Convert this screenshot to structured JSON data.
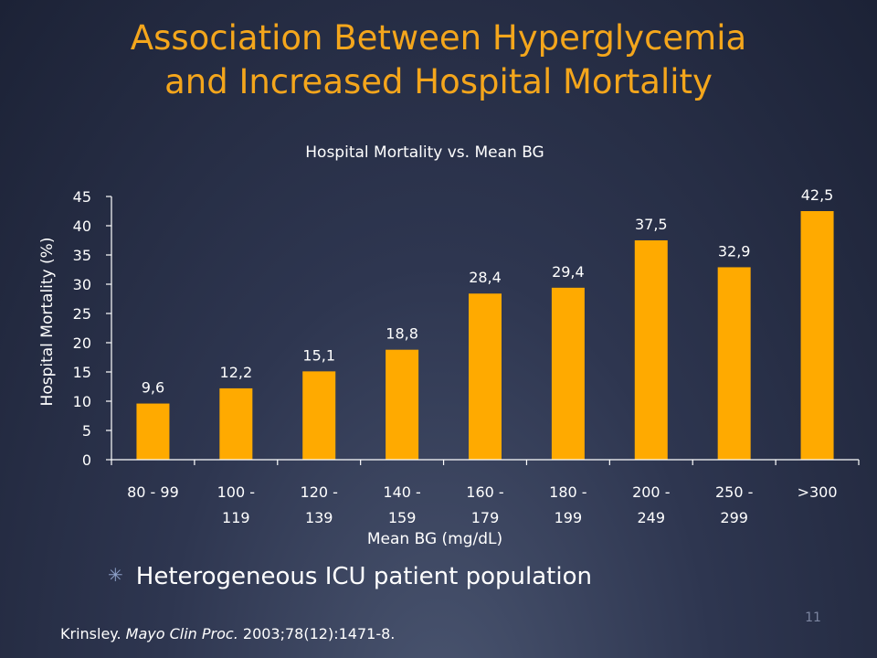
{
  "slide": {
    "title_line1": "Association Between Hyperglycemia",
    "title_line2": "and Increased Hospital Mortality",
    "bullet": "Heterogeneous ICU patient population",
    "citation_author": "Krinsley.",
    "citation_journal": "Mayo Clin Proc.",
    "citation_details": "2003;78(12):1471-8.",
    "page_number": "11"
  },
  "colors": {
    "title": "#f4a61c",
    "bar": "#ffaa00",
    "axis": "#ffffff"
  },
  "chart_data": {
    "type": "bar",
    "title": "Hospital Mortality vs. Mean BG",
    "xlabel": "Mean BG (mg/dL)",
    "ylabel": "Hospital Mortality (%)",
    "ylim": [
      0,
      45
    ],
    "yticks": [
      0,
      5,
      10,
      15,
      20,
      25,
      30,
      35,
      40,
      45
    ],
    "categories": [
      [
        "80 - 99"
      ],
      [
        "100 -",
        "119"
      ],
      [
        "120 -",
        "139"
      ],
      [
        "140 -",
        "159"
      ],
      [
        "160 -",
        "179"
      ],
      [
        "180 -",
        "199"
      ],
      [
        "200 -",
        "249"
      ],
      [
        "250 -",
        "299"
      ],
      [
        ">300"
      ]
    ],
    "values": [
      9.6,
      12.2,
      15.1,
      18.8,
      28.4,
      29.4,
      37.5,
      32.9,
      42.5
    ],
    "value_labels": [
      "9,6",
      "12,2",
      "15,1",
      "18,8",
      "28,4",
      "29,4",
      "37,5",
      "32,9",
      "42,5"
    ],
    "grid": false,
    "legend": "none"
  }
}
